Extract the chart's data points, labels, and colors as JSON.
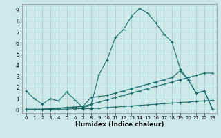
{
  "title": "",
  "xlabel": "Humidex (Indice chaleur)",
  "background_color": "#cce8e8",
  "grid_color": "#aacccc",
  "line_color": "#1a6b6b",
  "xlim": [
    -0.5,
    23.5
  ],
  "ylim": [
    -0.3,
    9.5
  ],
  "xticks": [
    0,
    1,
    2,
    3,
    4,
    5,
    6,
    7,
    8,
    9,
    10,
    11,
    12,
    13,
    14,
    15,
    16,
    17,
    18,
    19,
    20,
    21,
    22,
    23
  ],
  "yticks": [
    0,
    1,
    2,
    3,
    4,
    5,
    6,
    7,
    8,
    9
  ],
  "series": [
    {
      "x": [
        0,
        1,
        2,
        3,
        4,
        5,
        6,
        7,
        8,
        9,
        10,
        11,
        12,
        13,
        14,
        15,
        16,
        17,
        18,
        19,
        20,
        21,
        22,
        23
      ],
      "y": [
        1.7,
        1.0,
        0.5,
        1.0,
        0.8,
        1.6,
        0.9,
        0.2,
        0.4,
        3.2,
        4.5,
        6.5,
        7.2,
        8.4,
        9.1,
        8.7,
        7.8,
        6.8,
        6.1,
        3.7,
        2.7,
        1.5,
        1.7,
        0.05
      ]
    },
    {
      "x": [
        0,
        1,
        2,
        3,
        4,
        5,
        6,
        7,
        8,
        9,
        10,
        11,
        12,
        13,
        14,
        15,
        16,
        17,
        18,
        19,
        20,
        21,
        22,
        23
      ],
      "y": [
        0.05,
        0.05,
        0.05,
        0.1,
        0.15,
        0.2,
        0.25,
        0.3,
        1.1,
        1.2,
        1.3,
        1.5,
        1.7,
        1.9,
        2.1,
        2.3,
        2.5,
        2.7,
        2.9,
        3.5,
        2.7,
        1.5,
        1.7,
        0.05
      ]
    },
    {
      "x": [
        0,
        1,
        2,
        3,
        4,
        5,
        6,
        7,
        8,
        9,
        10,
        11,
        12,
        13,
        14,
        15,
        16,
        17,
        18,
        19,
        20,
        21,
        22,
        23
      ],
      "y": [
        0.05,
        0.05,
        0.05,
        0.1,
        0.15,
        0.2,
        0.25,
        0.3,
        0.5,
        0.7,
        0.9,
        1.1,
        1.3,
        1.5,
        1.7,
        1.9,
        2.1,
        2.3,
        2.5,
        2.7,
        2.9,
        3.1,
        3.3,
        3.3
      ]
    },
    {
      "x": [
        0,
        1,
        2,
        3,
        4,
        5,
        6,
        7,
        8,
        9,
        10,
        11,
        12,
        13,
        14,
        15,
        16,
        17,
        18,
        19,
        20,
        21,
        22,
        23
      ],
      "y": [
        0.02,
        0.02,
        0.02,
        0.03,
        0.05,
        0.07,
        0.1,
        0.1,
        0.1,
        0.15,
        0.2,
        0.25,
        0.3,
        0.35,
        0.4,
        0.45,
        0.5,
        0.55,
        0.6,
        0.65,
        0.7,
        0.75,
        0.8,
        0.85
      ]
    }
  ]
}
